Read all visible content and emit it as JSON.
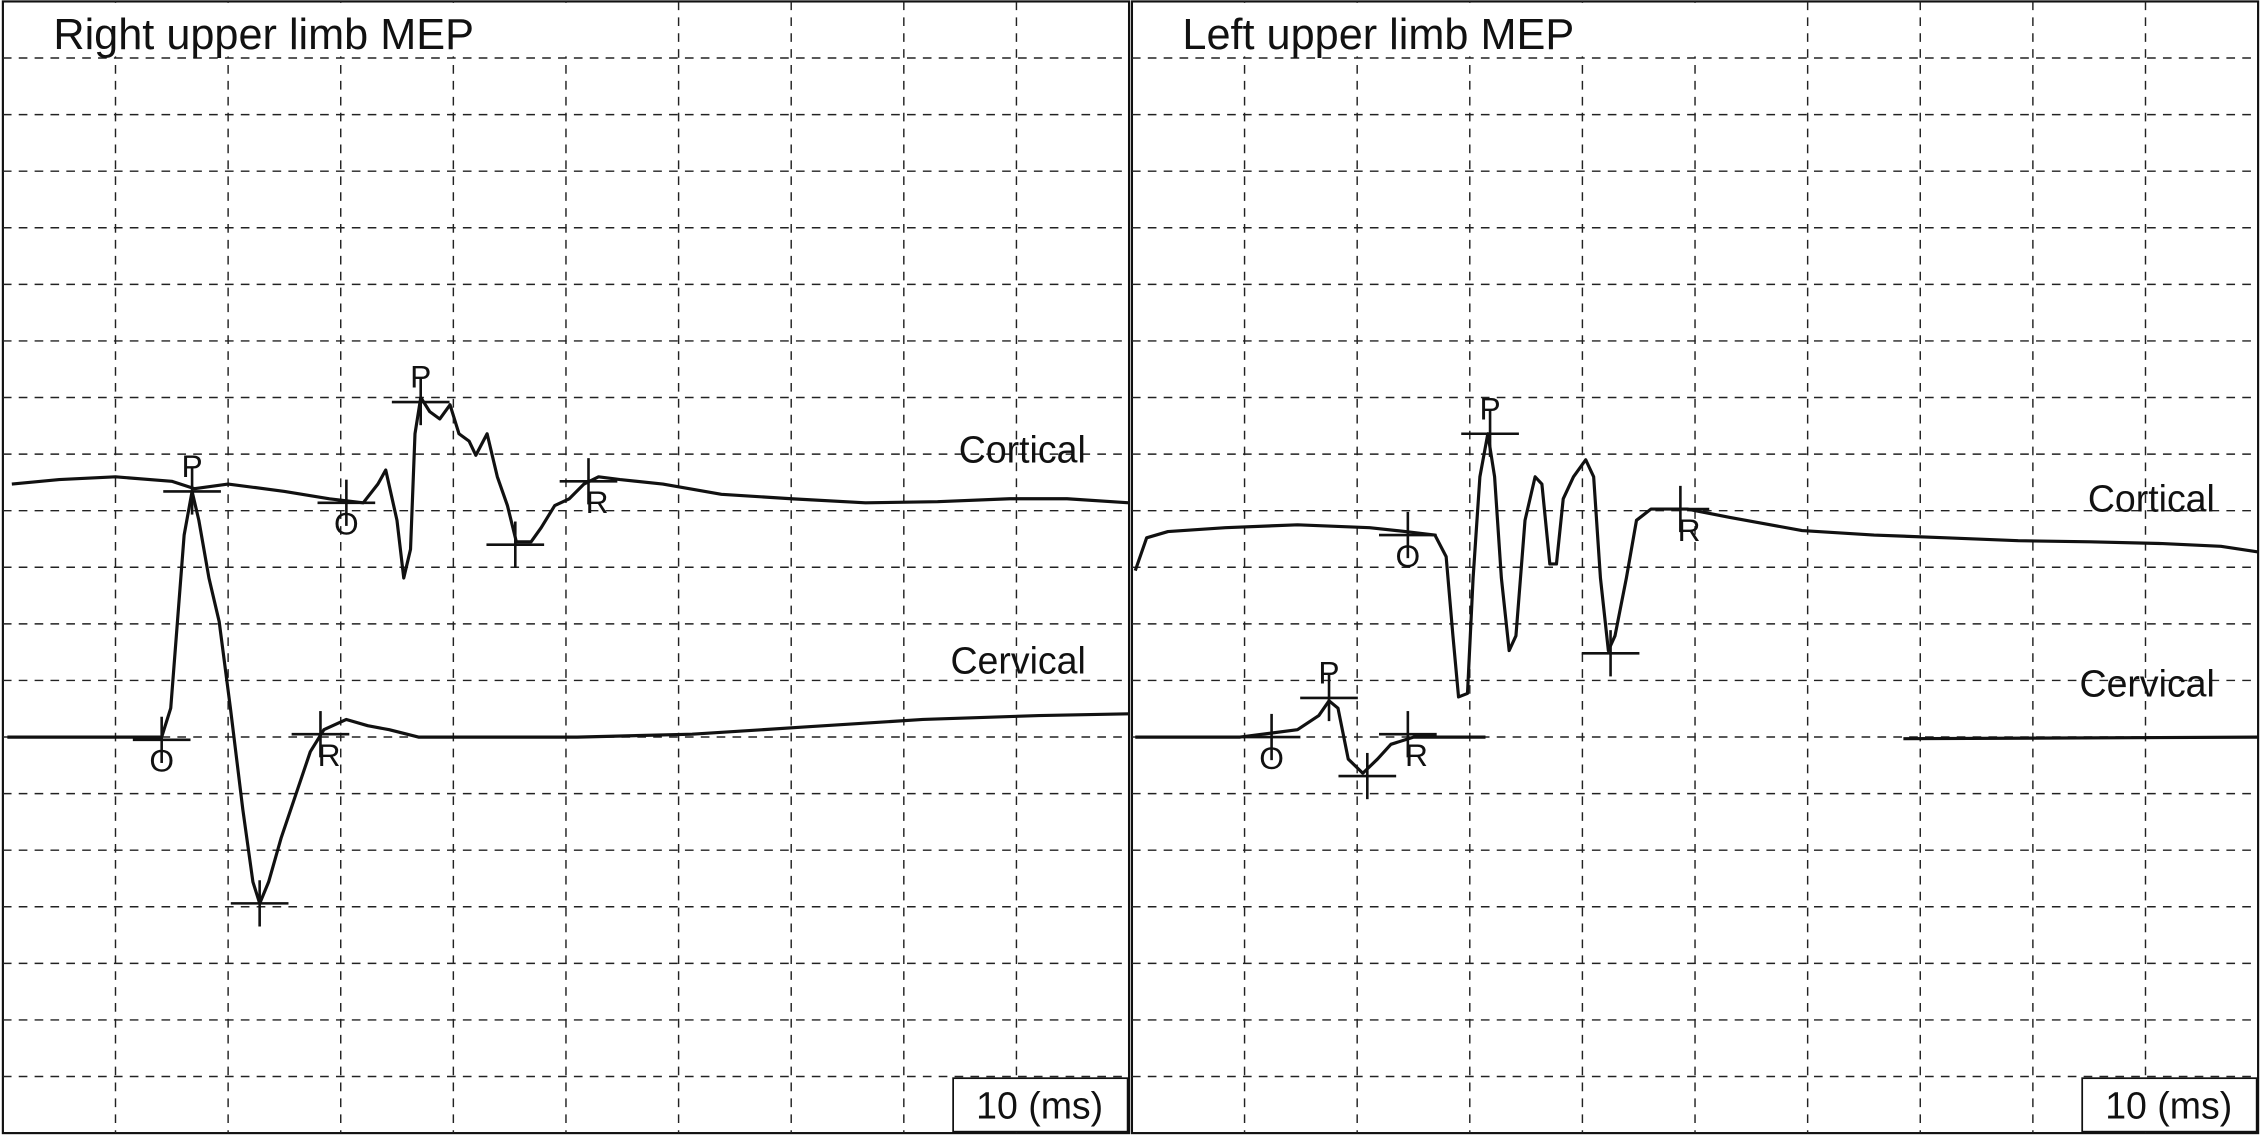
{
  "chart_data": [
    {
      "type": "line",
      "title": "Right upper limb MEP",
      "scale_label": "10 (ms)",
      "xlim": [
        0,
        10
      ],
      "ylim": [
        0,
        20
      ],
      "grid": true,
      "series": [
        {
          "name": "Cortical",
          "color": "#111111",
          "x": [
            0.08,
            0.5,
            1.0,
            1.5,
            1.7,
            2.0,
            2.5,
            2.9,
            3.2,
            3.33,
            3.4,
            3.5,
            3.56,
            3.62,
            3.66,
            3.71,
            3.79,
            3.88,
            3.97,
            4.05,
            4.14,
            4.2,
            4.3,
            4.39,
            4.48,
            4.56,
            4.69,
            4.78,
            4.9,
            5.03,
            5.16,
            5.29,
            5.48,
            5.86,
            6.38,
            7.0,
            7.66,
            8.3,
            8.94,
            9.45,
            10.0
          ],
          "values": [
            11.47,
            11.55,
            11.6,
            11.52,
            11.39,
            11.47,
            11.34,
            11.21,
            11.14,
            11.47,
            11.72,
            10.83,
            9.81,
            10.32,
            12.36,
            13.0,
            12.75,
            12.62,
            12.87,
            12.36,
            12.23,
            11.98,
            12.36,
            11.6,
            11.09,
            10.45,
            10.45,
            10.7,
            11.09,
            11.21,
            11.47,
            11.6,
            11.55,
            11.47,
            11.29,
            11.21,
            11.14,
            11.16,
            11.21,
            11.21,
            11.14
          ]
        },
        {
          "name": "Cervical",
          "color": "#111111",
          "x": [
            0.04,
            1.25,
            1.41,
            1.49,
            1.54,
            1.61,
            1.68,
            1.74,
            1.83,
            1.92,
            2.02,
            2.13,
            2.22,
            2.28,
            2.36,
            2.47,
            2.6,
            2.73,
            2.85,
            3.05,
            3.24,
            3.43,
            3.69,
            5.1,
            6.12,
            7.14,
            8.17,
            9.2,
            10.0
          ],
          "values": [
            7.0,
            7.0,
            7.0,
            7.51,
            8.79,
            10.57,
            11.34,
            10.83,
            9.81,
            9.04,
            7.51,
            5.72,
            4.44,
            4.06,
            4.44,
            5.21,
            5.98,
            6.74,
            7.13,
            7.31,
            7.2,
            7.13,
            7.0,
            7.0,
            7.05,
            7.18,
            7.31,
            7.38,
            7.41
          ]
        }
      ],
      "markers": [
        {
          "label": "O",
          "x": 1.41,
          "y": 6.95
        },
        {
          "label": "P",
          "x": 1.68,
          "y": 11.34
        },
        {
          "x": 2.28,
          "y": 4.06
        },
        {
          "label": "R",
          "x": 2.82,
          "y": 7.05
        },
        {
          "label": "O",
          "x": 3.05,
          "y": 11.14
        },
        {
          "label": "P",
          "x": 3.71,
          "y": 12.92
        },
        {
          "x": 4.55,
          "y": 10.4
        },
        {
          "label": "R",
          "x": 5.2,
          "y": 11.52
        }
      ]
    },
    {
      "type": "line",
      "title": "Left upper limb MEP",
      "scale_label": "10 (ms)",
      "xlim": [
        0,
        10
      ],
      "ylim": [
        0,
        20
      ],
      "grid": true,
      "series": [
        {
          "name": "Cortical",
          "color": "#111111",
          "x": [
            0.03,
            0.13,
            0.32,
            0.83,
            1.47,
            2.11,
            2.43,
            2.69,
            2.79,
            2.85,
            2.9,
            2.98,
            3.03,
            3.09,
            3.16,
            3.22,
            3.28,
            3.35,
            3.41,
            3.49,
            3.58,
            3.64,
            3.71,
            3.77,
            3.83,
            3.92,
            4.03,
            4.1,
            4.16,
            4.23,
            4.29,
            4.39,
            4.48,
            4.61,
            4.93,
            5.31,
            5.95,
            6.59,
            7.23,
            7.87,
            8.51,
            9.15,
            9.67,
            10.0
          ],
          "values": [
            9.94,
            10.52,
            10.63,
            10.7,
            10.75,
            10.7,
            10.63,
            10.57,
            10.19,
            8.79,
            7.71,
            7.77,
            9.81,
            11.6,
            12.36,
            11.6,
            9.81,
            8.53,
            8.79,
            10.83,
            11.6,
            11.47,
            10.06,
            10.06,
            11.21,
            11.6,
            11.9,
            11.6,
            9.81,
            8.53,
            8.79,
            9.81,
            10.83,
            11.03,
            11.03,
            10.88,
            10.65,
            10.57,
            10.52,
            10.47,
            10.45,
            10.42,
            10.37,
            10.27
          ]
        },
        {
          "name": "Cervical",
          "color": "#111111",
          "x": [
            0.03,
            0.96,
            1.47,
            1.66,
            1.75,
            1.83,
            1.92,
            2.05,
            2.18,
            2.3,
            2.5,
            3.14,
            4.5,
            6.85,
            10.0
          ],
          "values": [
            7.0,
            7.0,
            7.13,
            7.38,
            7.64,
            7.51,
            6.61,
            6.36,
            6.61,
            6.87,
            7.0,
            7.0,
            null,
            6.97,
            7.0
          ]
        }
      ],
      "markers": [
        {
          "label": "O",
          "x": 2.45,
          "y": 10.57
        },
        {
          "label": "P",
          "x": 3.18,
          "y": 12.36
        },
        {
          "x": 4.25,
          "y": 8.48
        },
        {
          "label": "R",
          "x": 4.87,
          "y": 11.03
        },
        {
          "label": "O",
          "x": 1.24,
          "y": 7.0
        },
        {
          "label": "P",
          "x": 1.75,
          "y": 7.69
        },
        {
          "x": 2.09,
          "y": 6.31
        },
        {
          "label": "R",
          "x": 2.45,
          "y": 7.05
        }
      ]
    }
  ]
}
